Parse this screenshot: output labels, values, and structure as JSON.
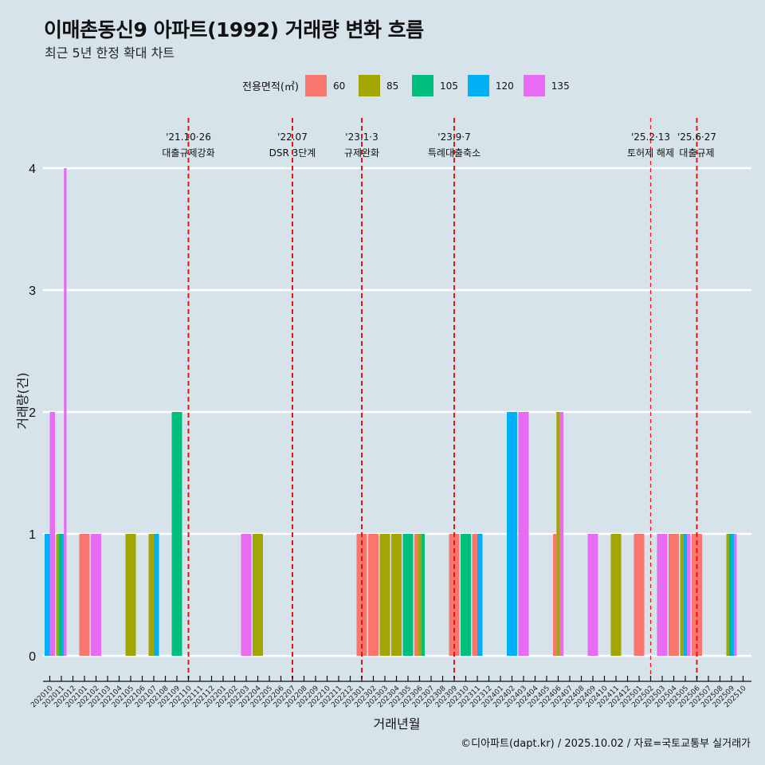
{
  "header": {
    "title": "이매촌동신9 아파트(1992) 거래량 변화 흐름",
    "subtitle": "최근 5년 한정 확대 차트"
  },
  "legend": {
    "title": "전용면적(㎡)",
    "items": [
      {
        "label": "60",
        "color": "#F8766D"
      },
      {
        "label": "85",
        "color": "#A3A500"
      },
      {
        "label": "105",
        "color": "#00BF7D"
      },
      {
        "label": "120",
        "color": "#00B0F6"
      },
      {
        "label": "135",
        "color": "#E76BF3"
      }
    ]
  },
  "caption": "©디아파트(dapt.kr) / 2025.10.02 / 자료=국토교통부 실거래가",
  "chart_data": {
    "type": "bar",
    "title": "이매촌동신9 아파트(1992) 거래량 변화 흐름",
    "subtitle": "최근 5년 한정 확대 차트",
    "xlabel": "거래년월",
    "ylabel": "거래량(건)",
    "ylim": [
      0,
      4
    ],
    "yticks": [
      0,
      1,
      2,
      3,
      4
    ],
    "grid": "horizontal",
    "legend_position": "top",
    "bar_position": "dodge",
    "categories": [
      "202010",
      "202011",
      "202012",
      "202101",
      "202102",
      "202103",
      "202104",
      "202105",
      "202106",
      "202107",
      "202108",
      "202109",
      "202110",
      "202111",
      "202112",
      "202201",
      "202202",
      "202203",
      "202204",
      "202205",
      "202206",
      "202207",
      "202208",
      "202209",
      "202210",
      "202211",
      "202212",
      "202301",
      "202302",
      "202303",
      "202304",
      "202305",
      "202306",
      "202307",
      "202308",
      "202309",
      "202310",
      "202311",
      "202312",
      "202401",
      "202402",
      "202403",
      "202404",
      "202405",
      "202406",
      "202407",
      "202408",
      "202409",
      "202410",
      "202411",
      "202412",
      "202501",
      "202502",
      "202503",
      "202504",
      "202505",
      "202506",
      "202507",
      "202508",
      "202509",
      "202510"
    ],
    "series_names": [
      "60",
      "85",
      "105",
      "120",
      "135"
    ],
    "records": [
      {
        "month": "202010",
        "values": {
          "120": 1,
          "135": 2
        }
      },
      {
        "month": "202011",
        "values": {
          "85": 1,
          "105": 1,
          "120": 1,
          "135": 4
        }
      },
      {
        "month": "202101",
        "values": {
          "60": 1
        }
      },
      {
        "month": "202102",
        "values": {
          "135": 1
        }
      },
      {
        "month": "202105",
        "values": {
          "85": 1
        }
      },
      {
        "month": "202107",
        "values": {
          "85": 1,
          "120": 1
        }
      },
      {
        "month": "202109",
        "values": {
          "105": 2
        }
      },
      {
        "month": "202203",
        "values": {
          "135": 1
        }
      },
      {
        "month": "202204",
        "values": {
          "85": 1
        }
      },
      {
        "month": "202301",
        "values": {
          "60": 1
        }
      },
      {
        "month": "202302",
        "values": {
          "60": 1
        }
      },
      {
        "month": "202303",
        "values": {
          "85": 1
        }
      },
      {
        "month": "202304",
        "values": {
          "85": 1
        }
      },
      {
        "month": "202305",
        "values": {
          "105": 1
        }
      },
      {
        "month": "202306",
        "values": {
          "60": 1,
          "85": 1,
          "105": 1
        }
      },
      {
        "month": "202309",
        "values": {
          "60": 1
        }
      },
      {
        "month": "202310",
        "values": {
          "105": 1
        }
      },
      {
        "month": "202311",
        "values": {
          "60": 1,
          "120": 1
        }
      },
      {
        "month": "202402",
        "values": {
          "120": 2
        }
      },
      {
        "month": "202403",
        "values": {
          "135": 2
        }
      },
      {
        "month": "202406",
        "values": {
          "60": 1,
          "85": 2,
          "135": 2
        }
      },
      {
        "month": "202409",
        "values": {
          "135": 1
        }
      },
      {
        "month": "202411",
        "values": {
          "85": 1
        }
      },
      {
        "month": "202501",
        "values": {
          "60": 1
        }
      },
      {
        "month": "202503",
        "values": {
          "135": 1
        }
      },
      {
        "month": "202504",
        "values": {
          "60": 1
        }
      },
      {
        "month": "202505",
        "values": {
          "85": 1,
          "120": 1,
          "135": 1
        }
      },
      {
        "month": "202506",
        "values": {
          "60": 1
        }
      },
      {
        "month": "202509",
        "values": {
          "85": 1,
          "105": 1,
          "120": 1,
          "135": 1
        }
      }
    ],
    "events": [
      {
        "month": "202110",
        "date": "'21.10·26",
        "label": "대출규제강화",
        "style": "thick"
      },
      {
        "month": "202207",
        "date": "'22.07",
        "label": "DSR 3단계",
        "style": "thick"
      },
      {
        "month": "202301",
        "date": "'23.1·3",
        "label": "규제완화",
        "style": "thick"
      },
      {
        "month": "202309",
        "date": "'23.9·7",
        "label": "특례대출축소",
        "style": "thick"
      },
      {
        "month": "202502",
        "date": "'25.2·13",
        "label": "토허제 해제",
        "style": "thin"
      },
      {
        "month": "202506",
        "date": "'25.6·27",
        "label": "대출규제",
        "style": "thick"
      }
    ]
  }
}
